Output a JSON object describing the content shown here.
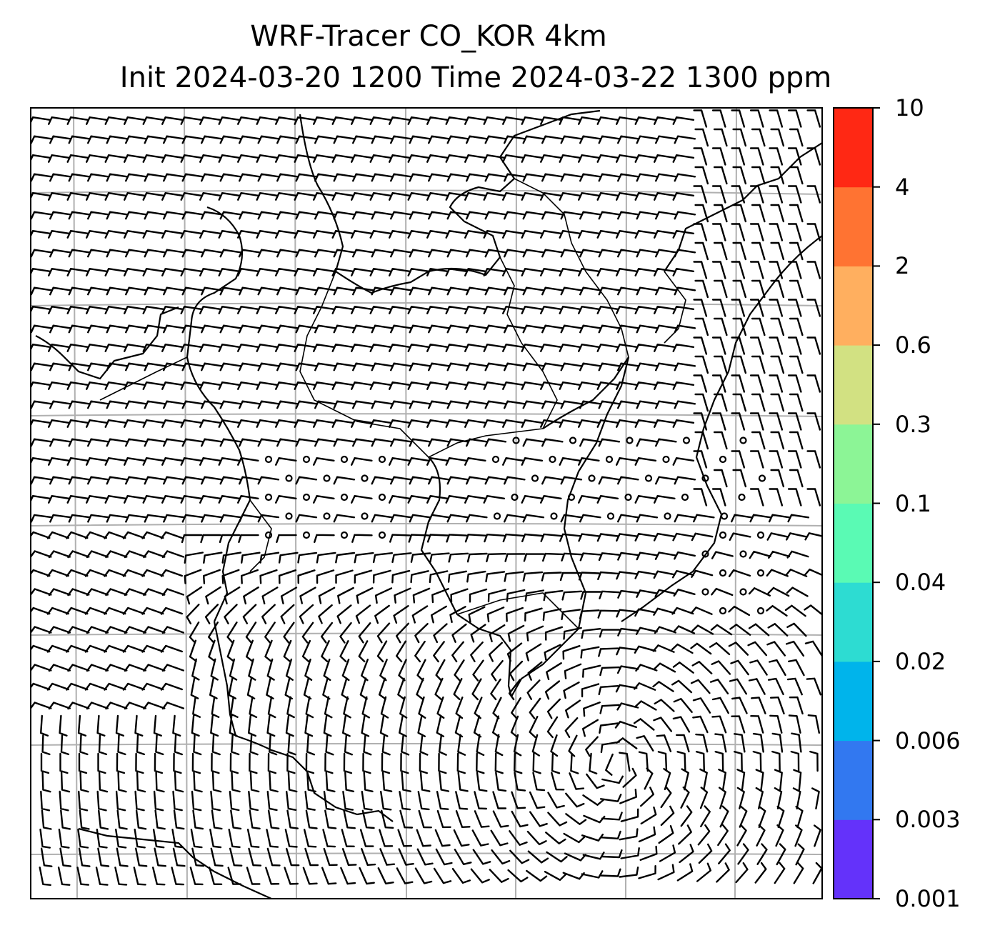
{
  "title": {
    "line1": "WRF-Tracer CO_KOR 4km",
    "line2": "Init 2024-03-20 1200 Time 2024-03-22 1300 ppm"
  },
  "colorbar": {
    "levels": [
      "0.001",
      "0.003",
      "0.006",
      "0.02",
      "0.04",
      "0.1",
      "0.3",
      "0.6",
      "2",
      "4",
      "10"
    ],
    "colors": [
      "#6432fa",
      "#3278f0",
      "#00b4eb",
      "#2ddcd2",
      "#5afab4",
      "#8cf596",
      "#d2e182",
      "#ffaf5f",
      "#ff7332",
      "#ff2814"
    ]
  },
  "map": {
    "grid": "on",
    "wind_barbs": "on"
  }
}
